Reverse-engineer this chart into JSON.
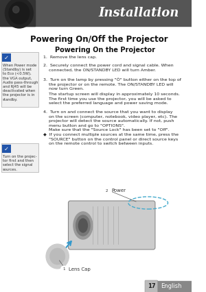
{
  "header_text": "Installation",
  "header_bg_color": "#555555",
  "header_text_color": "#ffffff",
  "page_bg_color": "#ffffff",
  "title": "Powering On/Off the Projector",
  "subtitle": "Powering On the Projector",
  "note1_text": "When Power mode\n(Standby) is set\nto Eco (<0.5W),\nthe VGA output,\nAudio pass-through\nand RJ45 will be\ndeactivated when\nthe projector is in\nstandby.",
  "note2_text": "Turn on the projec-\ntor first and then\nselect the signal\nsources.",
  "footer_number": "17",
  "footer_text": "English",
  "footer_bg": "#888888",
  "footer_text_color": "#ffffff",
  "body_lines": [
    [
      "1.  Remove the lens cap.",
      345
    ],
    [
      "2.  Securely connect the power cord and signal cable. When\n    connected, the ON/STANDBY LED will turn Amber.",
      333
    ],
    [
      "3.  Turn on the lamp by pressing \"Ô\" button either on the top of\n    the projector or on the remote. The ON/STANDBY LED will\n    now turn Green.",
      313
    ],
    [
      "    The startup screen will display in approximately 10 seconds.\n    The first time you use the projector, you will be asked to\n    select the preferred language and power saving mode.",
      291
    ],
    [
      "4.  Turn on and connect the source that you want to display\n    on the screen (computer, notebook, video player, etc). The\n    projector will detect the source automatically. If not, push\n    menu button and go to \"OPTIONS\".\n    Make sure that the \"Source Lock\" has been set to \"Off\".",
      265
    ],
    [
      "◆  If you connect multiple sources at the same time, press the\n    \"SOURCE\" button on the control panel or direct source keys\n    on the remote control to switch between inputs.",
      232
    ]
  ]
}
